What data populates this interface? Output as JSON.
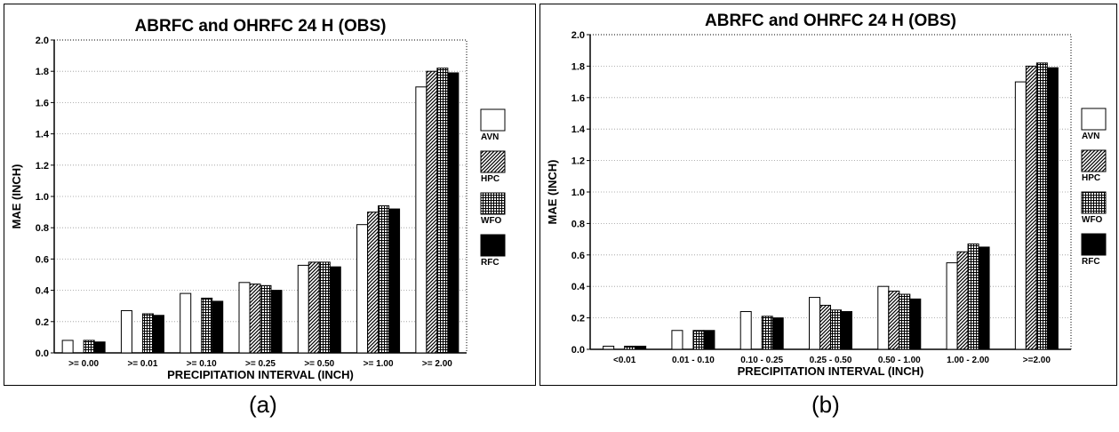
{
  "colors": {
    "AVN": "#ffffff",
    "HPC": "hatched",
    "WFO": "crosshatched",
    "RFC": "#000000",
    "gridline": "#999999",
    "frame": "#000000"
  },
  "captions": {
    "a": "(a)",
    "b": "(b)"
  },
  "chart_data": [
    {
      "type": "bar",
      "title": "ABRFC and OHRFC  24 H  (OBS)",
      "xlabel": "PRECIPITATION INTERVAL (INCH)",
      "ylabel": "MAE (INCH)",
      "ylim": [
        0,
        2.0
      ],
      "yticks": [
        "0.0",
        "0.2",
        "0.4",
        "0.6",
        "0.8",
        "1.0",
        "1.2",
        "1.4",
        "1.6",
        "1.8",
        "2.0"
      ],
      "grid": true,
      "legend_position": "right",
      "categories": [
        ">= 0.00",
        ">= 0.01",
        ">= 0.10",
        ">= 0.25",
        ">= 0.50",
        ">= 1.00",
        ">= 2.00"
      ],
      "series": [
        {
          "name": "AVN",
          "pattern": "white",
          "values": [
            0.08,
            0.27,
            0.38,
            0.45,
            0.56,
            0.82,
            1.7
          ]
        },
        {
          "name": "HPC",
          "pattern": "hatched",
          "values": [
            0.0,
            0.0,
            0.0,
            0.44,
            0.58,
            0.9,
            1.8
          ]
        },
        {
          "name": "WFO",
          "pattern": "crosshatched",
          "values": [
            0.08,
            0.25,
            0.35,
            0.43,
            0.58,
            0.94,
            1.82
          ]
        },
        {
          "name": "RFC",
          "pattern": "black",
          "values": [
            0.07,
            0.24,
            0.33,
            0.4,
            0.55,
            0.92,
            1.79
          ]
        }
      ]
    },
    {
      "type": "bar",
      "title": "ABRFC and OHRFC  24 H  (OBS)",
      "xlabel": "PRECIPITATION INTERVAL (INCH)",
      "ylabel": "MAE (INCH)",
      "ylim": [
        0,
        2.0
      ],
      "yticks": [
        "0.0",
        "0.2",
        "0.4",
        "0.6",
        "0.8",
        "1.0",
        "1.2",
        "1.4",
        "1.6",
        "1.8",
        "2.0"
      ],
      "grid": true,
      "legend_position": "right",
      "categories": [
        "<0.01",
        "0.01 - 0.10",
        "0.10 - 0.25",
        "0.25 - 0.50",
        "0.50 - 1.00",
        "1.00 - 2.00",
        ">=2.00"
      ],
      "series": [
        {
          "name": "AVN",
          "pattern": "white",
          "values": [
            0.02,
            0.12,
            0.24,
            0.33,
            0.4,
            0.55,
            1.7
          ]
        },
        {
          "name": "HPC",
          "pattern": "hatched",
          "values": [
            0.0,
            0.0,
            0.0,
            0.28,
            0.37,
            0.62,
            1.8
          ]
        },
        {
          "name": "WFO",
          "pattern": "crosshatched",
          "values": [
            0.02,
            0.12,
            0.21,
            0.25,
            0.35,
            0.67,
            1.82
          ]
        },
        {
          "name": "RFC",
          "pattern": "black",
          "values": [
            0.02,
            0.12,
            0.2,
            0.24,
            0.32,
            0.65,
            1.79
          ]
        }
      ]
    }
  ]
}
